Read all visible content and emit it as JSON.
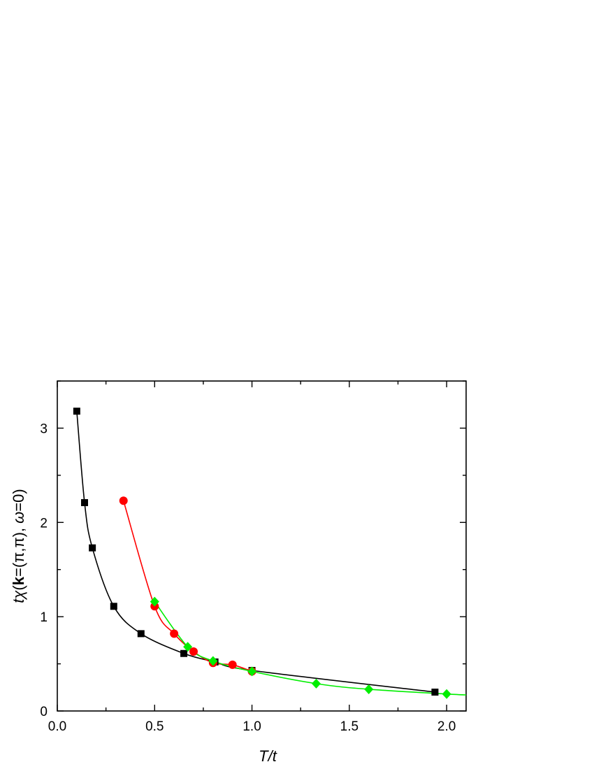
{
  "chart_data": {
    "type": "line",
    "xlabel": "T/t",
    "ylabel_parts": {
      "t": "t",
      "chi": "χ",
      "open": "(",
      "k": "k",
      "eq_pi": "=(π,π), ",
      "omega": "ω",
      "eq_zero": "=0)"
    },
    "xlim": [
      0.0,
      2.1
    ],
    "ylim": [
      0,
      3.5
    ],
    "xticks": [
      "0.0",
      "0.5",
      "1.0",
      "1.5",
      "2.0"
    ],
    "yticks": [
      "0",
      "1",
      "2",
      "3"
    ],
    "grid": false,
    "series": [
      {
        "marker": "square",
        "color": "#000000",
        "x": [
          0.1,
          0.14,
          0.18,
          0.29,
          0.43,
          0.65,
          0.81,
          1.0,
          1.94
        ],
        "y": [
          3.18,
          2.21,
          1.73,
          1.11,
          0.82,
          0.61,
          0.52,
          0.43,
          0.2
        ]
      },
      {
        "marker": "circle",
        "color": "#ff0000",
        "x": [
          0.34,
          0.5,
          0.6,
          0.7,
          0.8,
          0.9,
          1.0
        ],
        "y": [
          2.23,
          1.11,
          0.82,
          0.63,
          0.51,
          0.49,
          0.42
        ]
      },
      {
        "marker": "diamond",
        "color": "#00ee00",
        "x": [
          0.5,
          0.67,
          0.8,
          1.0,
          1.33,
          1.6,
          2.0
        ],
        "y": [
          1.16,
          0.68,
          0.53,
          0.42,
          0.29,
          0.23,
          0.18
        ]
      }
    ]
  }
}
